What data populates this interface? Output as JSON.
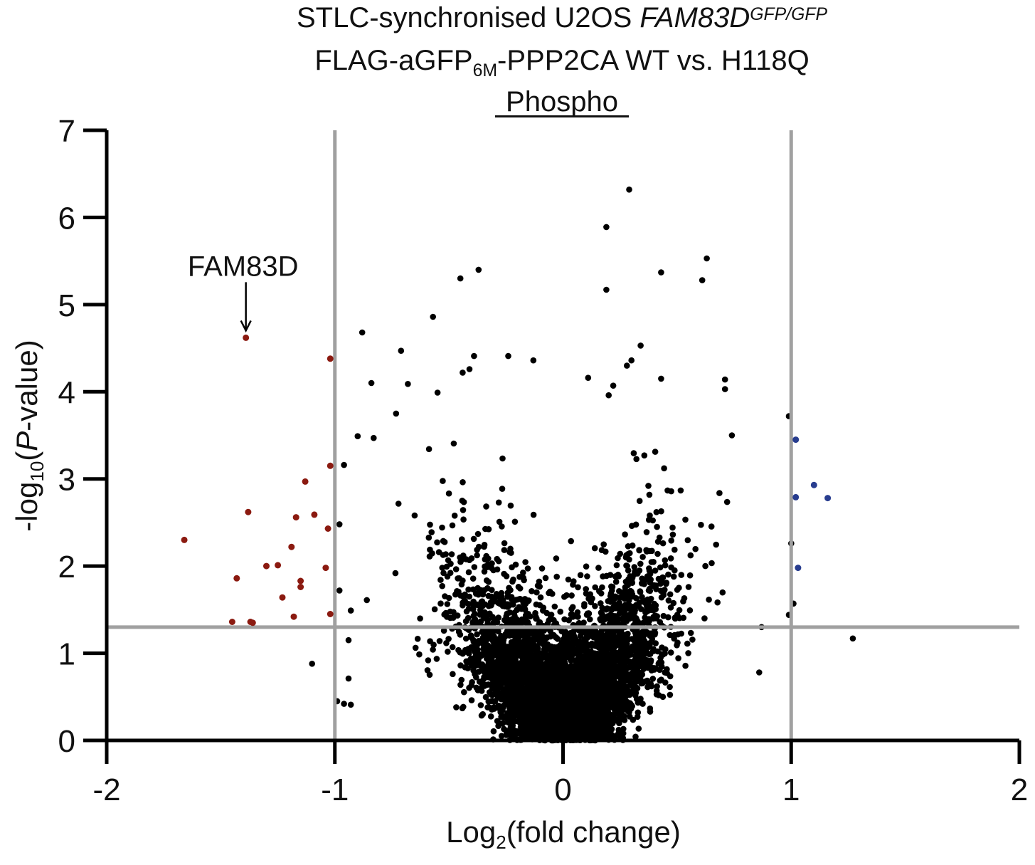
{
  "chart_data": {
    "type": "scatter",
    "title_lines": [
      {
        "parts": [
          {
            "t": "STLC-synchronised U2OS "
          },
          {
            "t": "FAM83D",
            "italic": true
          },
          {
            "t": "GFP/GFP",
            "italic": true,
            "sup": true
          }
        ]
      },
      {
        "parts": [
          {
            "t": "FLAG-aGFP"
          },
          {
            "t": "6M",
            "sub": true
          },
          {
            "t": "-PPP2CA WT vs. H118Q"
          }
        ]
      },
      {
        "parts": [
          {
            "t": "Phospho",
            "underline": true
          }
        ]
      }
    ],
    "xlabel_parts": [
      {
        "t": "Log"
      },
      {
        "t": "2",
        "sub": true
      },
      {
        "t": "(fold change)"
      }
    ],
    "ylabel_parts": [
      {
        "t": "-log"
      },
      {
        "t": "10",
        "sub": true
      },
      {
        "t": "("
      },
      {
        "t": "P",
        "italic": true
      },
      {
        "t": "-value)"
      }
    ],
    "xlim": [
      -2,
      2
    ],
    "ylim": [
      0,
      7
    ],
    "x_ticks": [
      -2,
      -1,
      0,
      1,
      2
    ],
    "x_tick_labels": [
      "-2",
      "-1",
      "0",
      "1",
      "2"
    ],
    "y_ticks": [
      0,
      1,
      2,
      3,
      4,
      5,
      6,
      7
    ],
    "y_tick_labels": [
      "0",
      "1",
      "2",
      "3",
      "4",
      "5",
      "6",
      "7"
    ],
    "thresholds": {
      "x": [
        -1,
        1
      ],
      "y": 1.3
    },
    "colors": {
      "background_points": "#000000",
      "down_regulated": "#8b1a10",
      "up_regulated": "#283d8f",
      "threshold_lines": "#a0a0a0",
      "axes": "#000000"
    },
    "annotation": {
      "label": "FAM83D",
      "x": -1.39,
      "y": 4.62
    },
    "highlighted_series": [
      {
        "category": "down",
        "points": [
          [
            -1.39,
            4.62
          ],
          [
            -1.02,
            4.38
          ],
          [
            -1.02,
            3.15
          ],
          [
            -1.13,
            2.97
          ],
          [
            -1.38,
            2.62
          ],
          [
            -1.09,
            2.59
          ],
          [
            -1.17,
            2.56
          ],
          [
            -1.03,
            2.43
          ],
          [
            -1.66,
            2.3
          ],
          [
            -1.19,
            2.22
          ],
          [
            -1.25,
            2.01
          ],
          [
            -1.3,
            2.0
          ],
          [
            -1.04,
            1.98
          ],
          [
            -1.43,
            1.86
          ],
          [
            -1.15,
            1.83
          ],
          [
            -1.15,
            1.76
          ],
          [
            -1.23,
            1.64
          ],
          [
            -1.02,
            1.45
          ],
          [
            -1.18,
            1.42
          ],
          [
            -1.45,
            1.36
          ],
          [
            -1.37,
            1.36
          ],
          [
            -1.36,
            1.35
          ]
        ]
      },
      {
        "category": "up",
        "points": [
          [
            1.02,
            3.45
          ],
          [
            1.1,
            2.93
          ],
          [
            1.02,
            2.79
          ],
          [
            1.16,
            2.78
          ],
          [
            1.03,
            1.98
          ]
        ]
      }
    ],
    "outlier_points": [
      [
        0.29,
        6.32
      ],
      [
        0.19,
        5.89
      ],
      [
        0.63,
        5.53
      ],
      [
        -0.37,
        5.4
      ],
      [
        -0.45,
        5.3
      ],
      [
        0.43,
        5.37
      ],
      [
        0.61,
        5.28
      ],
      [
        0.19,
        5.17
      ],
      [
        -0.57,
        4.86
      ],
      [
        -0.88,
        4.68
      ],
      [
        0.34,
        4.53
      ],
      [
        -0.71,
        4.47
      ],
      [
        -0.24,
        4.41
      ],
      [
        -0.39,
        4.41
      ],
      [
        -0.13,
        4.36
      ],
      [
        0.3,
        4.36
      ],
      [
        0.28,
        4.3
      ],
      [
        -0.41,
        4.26
      ],
      [
        -0.44,
        4.22
      ],
      [
        0.11,
        4.16
      ],
      [
        0.43,
        4.15
      ],
      [
        0.71,
        4.14
      ],
      [
        -0.84,
        4.1
      ],
      [
        -0.68,
        4.09
      ],
      [
        0.22,
        4.07
      ],
      [
        0.71,
        4.03
      ],
      [
        -0.55,
        3.99
      ],
      [
        0.2,
        3.96
      ],
      [
        0.99,
        3.72
      ],
      [
        0.74,
        3.5
      ],
      [
        1.0,
        2.26
      ],
      [
        1.01,
        1.57
      ],
      [
        0.99,
        1.44
      ],
      [
        1.27,
        1.17
      ],
      [
        -1.1,
        0.88
      ],
      [
        0.87,
        1.3
      ],
      [
        0.86,
        0.78
      ],
      [
        -0.98,
        2.48
      ],
      [
        -0.98,
        1.72
      ],
      [
        -0.96,
        3.16
      ],
      [
        -0.93,
        1.49
      ],
      [
        -0.94,
        1.15
      ],
      [
        -0.94,
        0.71
      ],
      [
        -0.99,
        0.45
      ],
      [
        -0.96,
        0.42
      ],
      [
        -0.93,
        0.41
      ],
      [
        -0.86,
        1.61
      ],
      [
        -0.9,
        3.49
      ],
      [
        -0.83,
        3.47
      ]
    ],
    "cloud_model": {
      "count": 5000,
      "seed": 20240512,
      "note": "dense V-shaped cloud of phosphosites with |log2FC| below 1"
    }
  }
}
